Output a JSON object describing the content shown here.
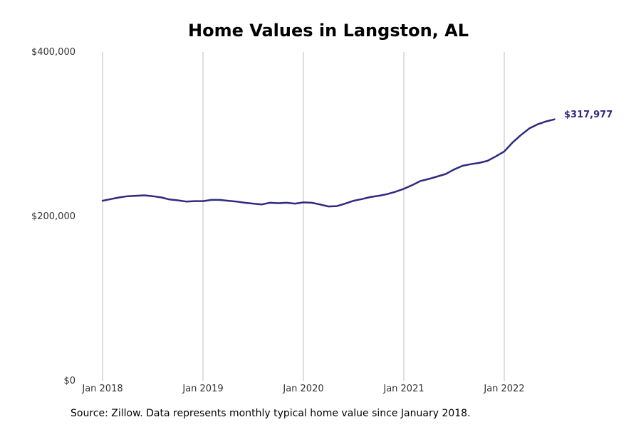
{
  "chart_data": {
    "type": "line",
    "title": "Home Values in Langston, AL",
    "xlabel": "",
    "ylabel": "",
    "x_ticks": [
      "Jan 2018",
      "Jan 2019",
      "Jan 2020",
      "Jan 2021",
      "Jan 2022"
    ],
    "y_ticks": [
      "$0",
      "$200,000",
      "$400,000"
    ],
    "y_tick_values": [
      0,
      200000,
      400000
    ],
    "ylim": [
      0,
      400000
    ],
    "xlim": [
      "2018-01",
      "2022-12"
    ],
    "grid": "vertical",
    "line_color": "#2e2a7f",
    "series": [
      {
        "x": [
          "2018-01",
          "2018-02",
          "2018-03",
          "2018-04",
          "2018-05",
          "2018-06",
          "2018-07",
          "2018-08",
          "2018-09",
          "2018-10",
          "2018-11",
          "2018-12",
          "2019-01",
          "2019-02",
          "2019-03",
          "2019-04",
          "2019-05",
          "2019-06",
          "2019-07",
          "2019-08",
          "2019-09",
          "2019-10",
          "2019-11",
          "2019-12",
          "2020-01",
          "2020-02",
          "2020-03",
          "2020-04",
          "2020-05",
          "2020-06",
          "2020-07",
          "2020-08",
          "2020-09",
          "2020-10",
          "2020-11",
          "2020-12",
          "2021-01",
          "2021-02",
          "2021-03",
          "2021-04",
          "2021-05",
          "2021-06",
          "2021-07",
          "2021-08",
          "2021-09",
          "2021-10",
          "2021-11",
          "2021-12",
          "2022-01",
          "2022-02",
          "2022-03",
          "2022-04",
          "2022-05",
          "2022-06",
          "2022-07"
        ],
        "values": [
          219000,
          221000,
          223000,
          224500,
          225000,
          225500,
          224500,
          223000,
          220500,
          219500,
          218000,
          218500,
          218500,
          220000,
          220000,
          219000,
          218000,
          216500,
          215500,
          214500,
          216500,
          216000,
          216500,
          215500,
          217000,
          216500,
          214500,
          212000,
          212500,
          215500,
          219000,
          221000,
          223500,
          225000,
          227000,
          230000,
          233500,
          238000,
          243000,
          245500,
          248500,
          251500,
          257000,
          261500,
          263500,
          265000,
          267500,
          273000,
          279000,
          290000,
          299000,
          307000,
          312000,
          315500,
          317977
        ]
      }
    ],
    "end_label": "$317,977"
  },
  "source_note": "Source: Zillow. Data represents monthly typical home value since January 2018."
}
